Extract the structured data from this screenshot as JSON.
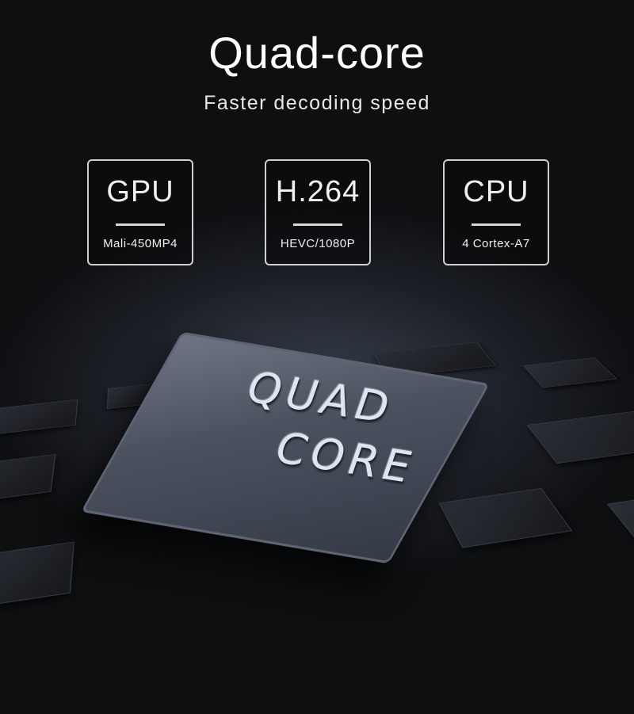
{
  "header": {
    "title": "Quad-core",
    "subtitle": "Faster decoding speed"
  },
  "cards": [
    {
      "label": "GPU",
      "detail": "Mali-450MP4"
    },
    {
      "label": "H.264",
      "detail": "HEVC/1080P"
    },
    {
      "label": "CPU",
      "detail": "4 Cortex-A7"
    }
  ],
  "chip": {
    "line1": "QUAD",
    "line2": "CORE"
  },
  "colors": {
    "background": "#0e0f11",
    "text": "#ffffff",
    "chip": "#4c5260"
  }
}
